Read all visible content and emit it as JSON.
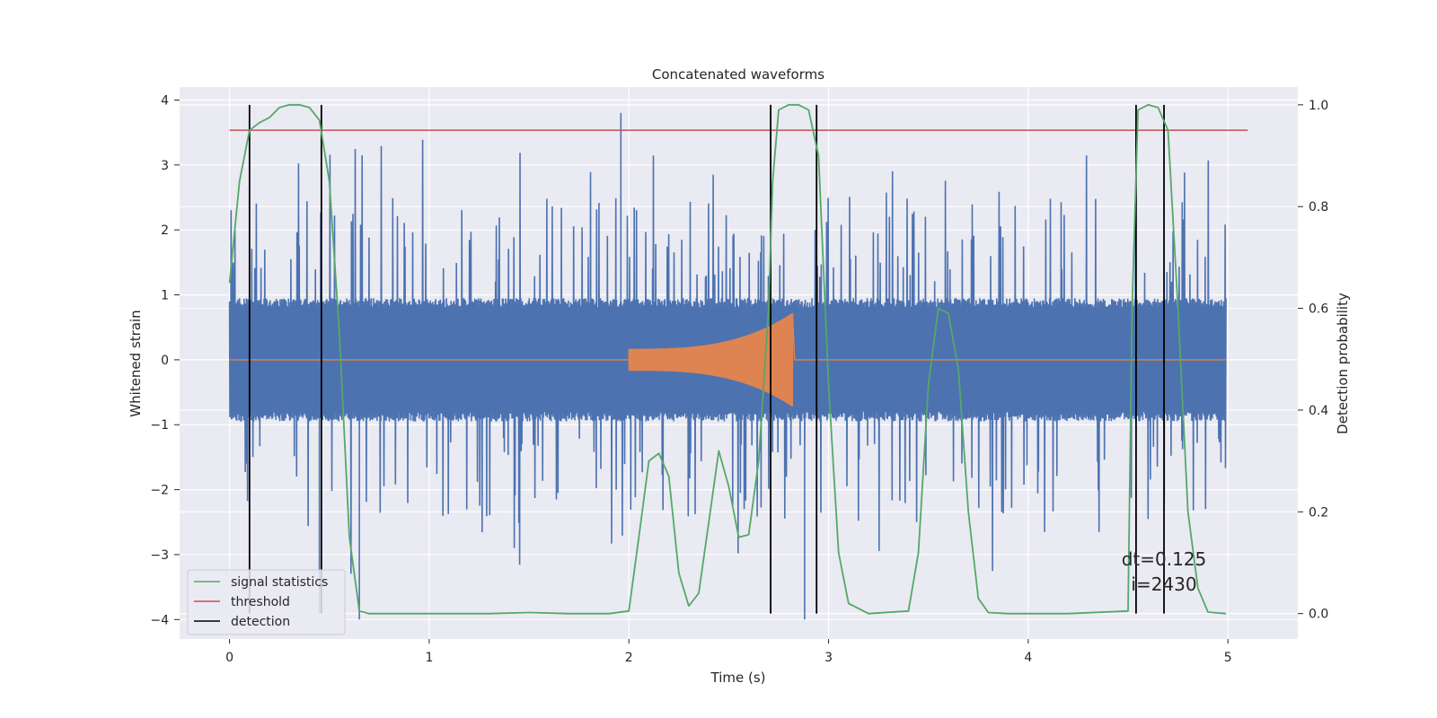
{
  "chart_data": {
    "type": "line",
    "title": "Concatenated waveforms",
    "xlabel": "Time (s)",
    "ylabel": "Whitened strain",
    "ylabel_right": "Detection probability",
    "xlim": [
      -0.25,
      5.35
    ],
    "ylim": [
      -4.3,
      4.2
    ],
    "ylim_right": [
      -0.05,
      1.035
    ],
    "x_ticks": [
      0,
      1,
      2,
      3,
      4,
      5
    ],
    "y_ticks": [
      -4,
      -3,
      -2,
      -1,
      0,
      1,
      2,
      3,
      4
    ],
    "y_ticks_right": [
      0.0,
      0.2,
      0.4,
      0.6,
      0.8,
      1.0
    ],
    "y_tick_labels": [
      "−4",
      "−3",
      "−2",
      "−1",
      "0",
      "1",
      "2",
      "3",
      "4"
    ],
    "y_tick_labels_right": [
      "0.0",
      "0.2",
      "0.4",
      "0.6",
      "0.8",
      "1.0"
    ],
    "grid": true,
    "legend_position": "lower-left",
    "strain": {
      "color": "#4c72b0",
      "t_start": 0.0,
      "t_end": 4.99,
      "envelope": 0.8,
      "peak_range": [
        -4.0,
        3.8
      ]
    },
    "injection": {
      "color": "#dd8452",
      "t_start": 2.0,
      "t_merge": 2.82,
      "t_end": 4.99,
      "amplitude_start": 0.17,
      "amplitude_peak": 0.72
    },
    "signal_statistics": {
      "name": "signal statistics",
      "color": "#55a868",
      "axis": "right",
      "x": [
        0.0,
        0.05,
        0.1,
        0.15,
        0.2,
        0.25,
        0.3,
        0.35,
        0.4,
        0.45,
        0.5,
        0.55,
        0.6,
        0.65,
        0.7,
        0.8,
        1.0,
        1.3,
        1.5,
        1.7,
        1.9,
        2.0,
        2.05,
        2.1,
        2.15,
        2.2,
        2.25,
        2.3,
        2.35,
        2.4,
        2.45,
        2.5,
        2.55,
        2.6,
        2.65,
        2.7,
        2.72,
        2.75,
        2.8,
        2.85,
        2.9,
        2.95,
        3.0,
        3.05,
        3.1,
        3.2,
        3.4,
        3.45,
        3.5,
        3.55,
        3.6,
        3.65,
        3.7,
        3.75,
        3.8,
        3.9,
        4.2,
        4.5,
        4.52,
        4.55,
        4.6,
        4.65,
        4.7,
        4.75,
        4.8,
        4.85,
        4.9,
        4.99
      ],
      "y": [
        0.65,
        0.85,
        0.95,
        0.965,
        0.975,
        0.995,
        1.0,
        1.0,
        0.995,
        0.97,
        0.85,
        0.55,
        0.15,
        0.005,
        0.0,
        0.0,
        0.0,
        0.0,
        0.002,
        0.0,
        0.0,
        0.005,
        0.15,
        0.3,
        0.315,
        0.27,
        0.08,
        0.015,
        0.04,
        0.18,
        0.32,
        0.25,
        0.15,
        0.155,
        0.3,
        0.6,
        0.85,
        0.99,
        1.0,
        1.0,
        0.99,
        0.9,
        0.45,
        0.12,
        0.02,
        0.0,
        0.005,
        0.12,
        0.45,
        0.6,
        0.59,
        0.48,
        0.2,
        0.03,
        0.002,
        0.0,
        0.0,
        0.005,
        0.6,
        0.99,
        1.0,
        0.995,
        0.95,
        0.6,
        0.2,
        0.05,
        0.003,
        0.0
      ]
    },
    "threshold": {
      "name": "threshold",
      "color": "#c44e52",
      "axis": "right",
      "value": 0.95,
      "x_range": [
        0.0,
        5.1
      ]
    },
    "detections": {
      "name": "detection",
      "color": "#000000",
      "times": [
        0.1,
        0.46,
        2.71,
        2.94,
        4.54,
        4.68
      ]
    },
    "legend": [
      "signal statistics",
      "threshold",
      "detection"
    ],
    "annotations": [
      "dt=0.125",
      "i=2430"
    ]
  }
}
